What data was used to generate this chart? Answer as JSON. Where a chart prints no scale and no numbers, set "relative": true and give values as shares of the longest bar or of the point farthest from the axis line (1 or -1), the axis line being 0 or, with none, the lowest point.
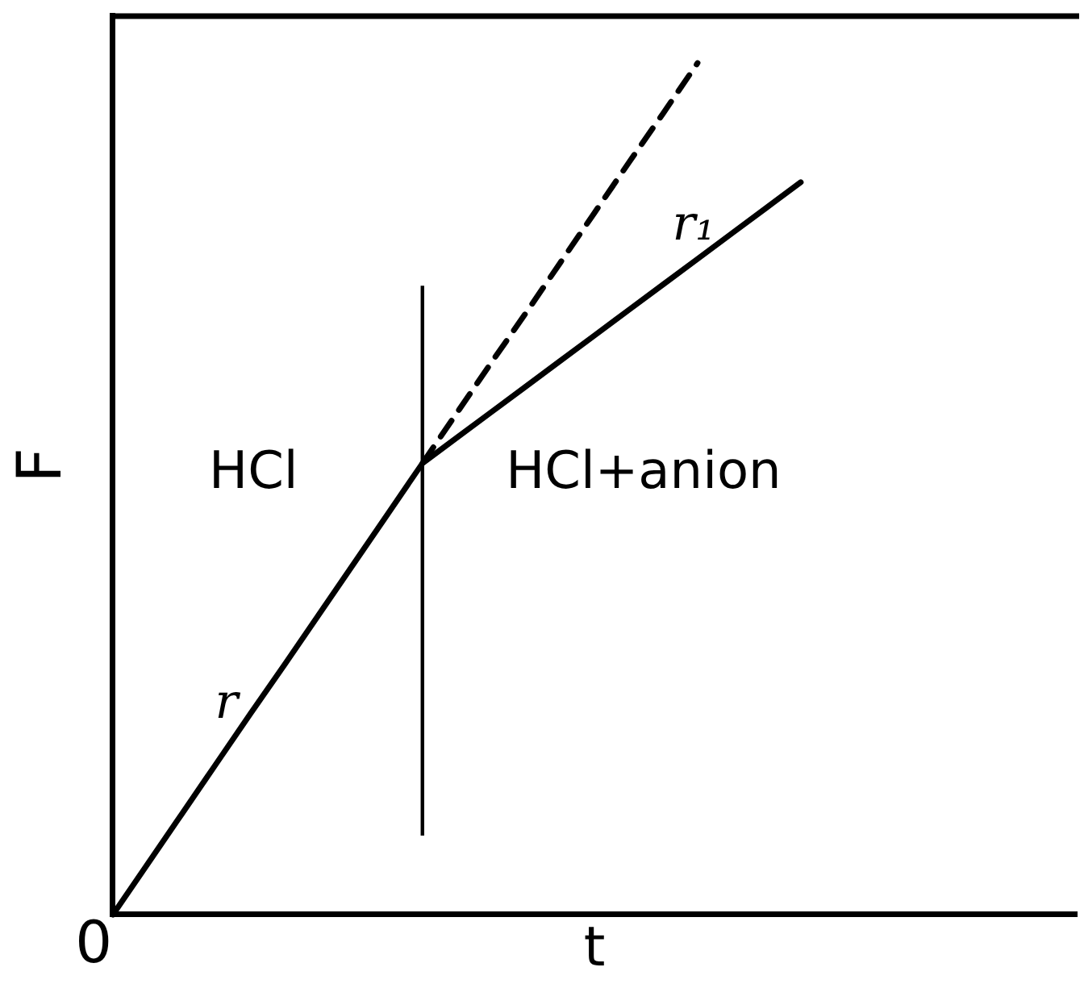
{
  "chart_data": {
    "type": "line",
    "relative": true,
    "xlabel": "t",
    "ylabel": "F",
    "marker": "none",
    "categories": [
      null,
      null,
      null,
      null,
      null,
      null,
      null,
      null,
      null,
      null,
      null,
      null,
      null,
      null,
      null,
      null,
      null,
      null,
      null,
      null,
      null,
      null,
      null,
      null,
      null,
      null,
      null,
      null,
      null
    ],
    "series": [
      {
        "color": "#000000",
        "line_style": "solid",
        "values": [
          0,
          0.059,
          0.118,
          0.177,
          0.236,
          0.294,
          0.353,
          0.412,
          0.471,
          0.53,
          0.56,
          0.59,
          0.62,
          0.65,
          0.68,
          0.71,
          0.74,
          0.77,
          0.8,
          0.83,
          0.86,
          null,
          null,
          null,
          null,
          null,
          null,
          null,
          null
        ]
      },
      {
        "color": "#000000",
        "line_style": "dashed",
        "values": [
          null,
          null,
          null,
          null,
          null,
          null,
          null,
          null,
          null,
          0.53,
          0.589,
          0.648,
          0.706,
          0.765,
          0.824,
          0.883,
          0.941,
          1,
          null,
          null,
          null,
          null,
          null,
          null,
          null,
          null,
          null,
          null,
          null
        ]
      }
    ],
    "annotations": [
      "0",
      "HCl",
      "HCl+anion",
      "r",
      "r₁"
    ]
  }
}
